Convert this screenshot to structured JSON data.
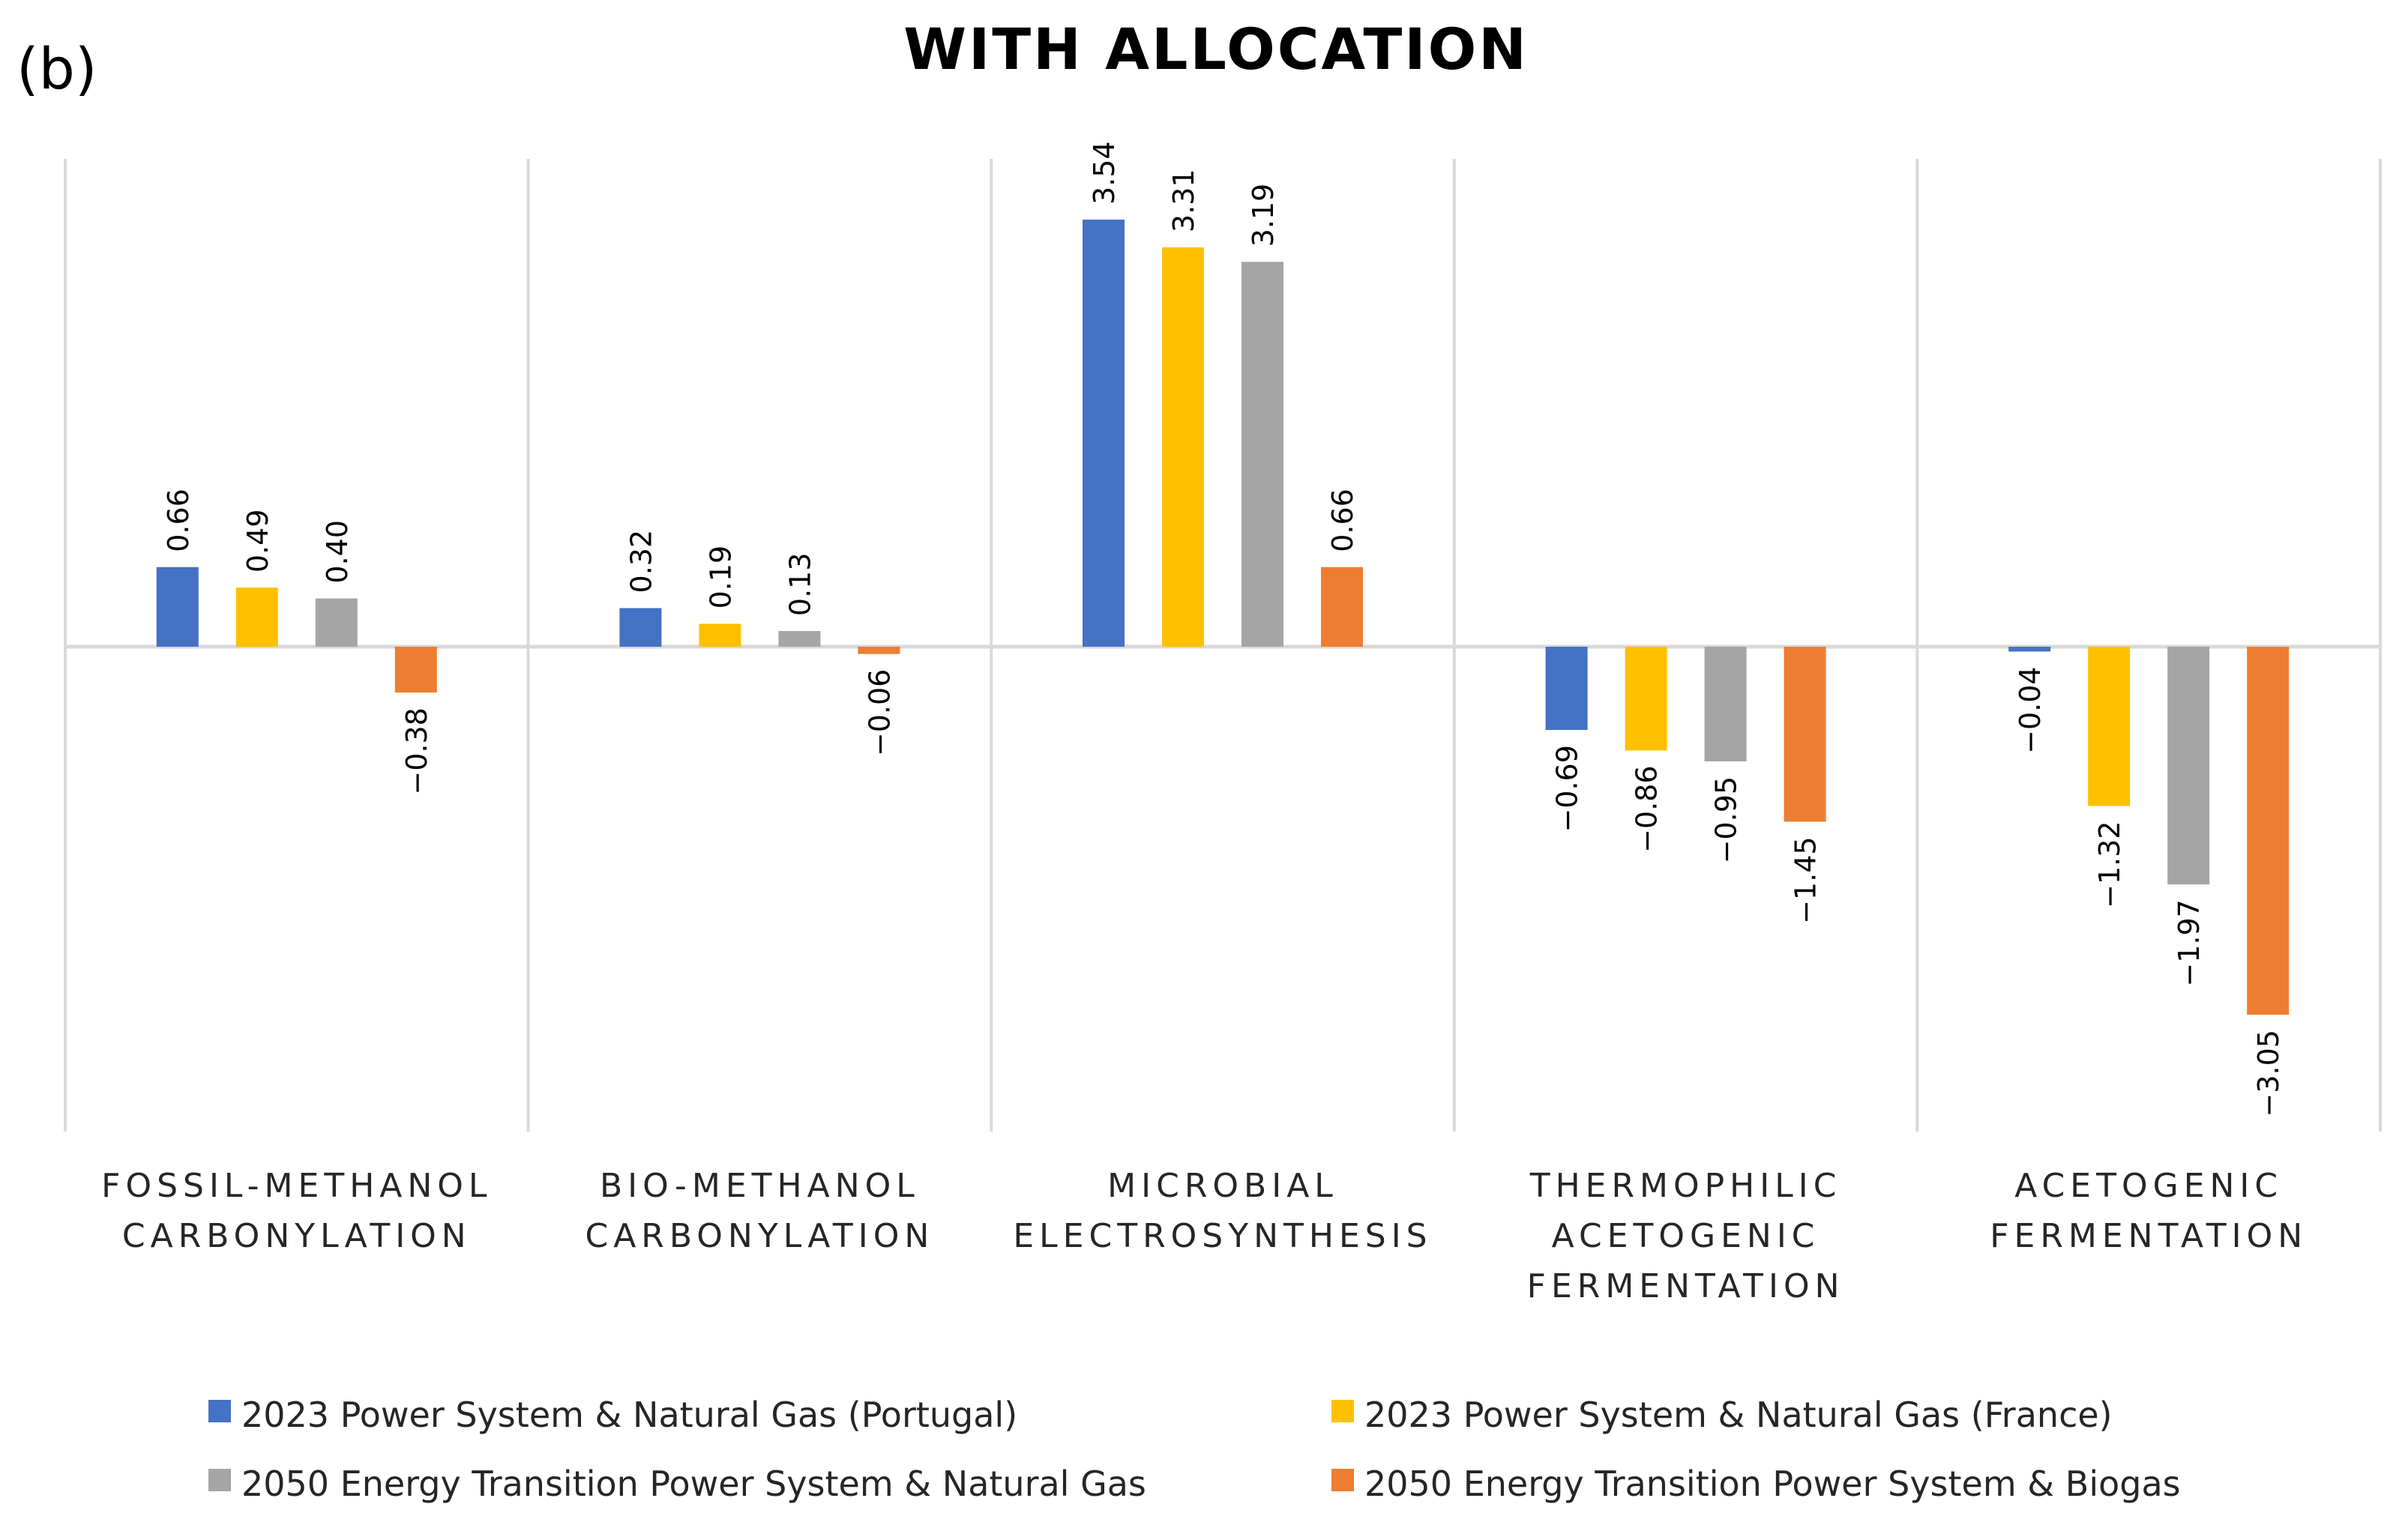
{
  "panel_label": "(b)",
  "chart_data": {
    "type": "bar",
    "title": "WITH ALLOCATION",
    "xlabel": "",
    "ylabel": "",
    "ylim": [
      -3.5,
      4.0
    ],
    "grid": "vertical category separators",
    "legend_position": "bottom",
    "categories": [
      [
        "FOSSIL-METHANOL",
        "CARBONYLATION"
      ],
      [
        "BIO-METHANOL",
        "CARBONYLATION"
      ],
      [
        "MICROBIAL",
        "ELECTROSYNTHESIS"
      ],
      [
        "THERMOPHILIC",
        "ACETOGENIC",
        "FERMENTATION"
      ],
      [
        "ACETOGENIC",
        "FERMENTATION"
      ]
    ],
    "series": [
      {
        "name": "2023 Power System & Natural Gas (Portugal)",
        "color": "#4472c4",
        "values": [
          0.66,
          0.32,
          3.54,
          -0.69,
          -0.04
        ]
      },
      {
        "name": "2023 Power System & Natural Gas (France)",
        "color": "#ffc000",
        "values": [
          0.49,
          0.19,
          3.31,
          -0.86,
          -1.32
        ]
      },
      {
        "name": "2050 Energy Transition Power System & Natural Gas",
        "color": "#a5a5a5",
        "values": [
          0.4,
          0.13,
          3.19,
          -0.95,
          -1.97
        ]
      },
      {
        "name": "2050 Energy Transition Power System & Biogas",
        "color": "#ed7d31",
        "values": [
          -0.38,
          -0.06,
          0.66,
          -1.45,
          -3.05
        ]
      }
    ]
  }
}
